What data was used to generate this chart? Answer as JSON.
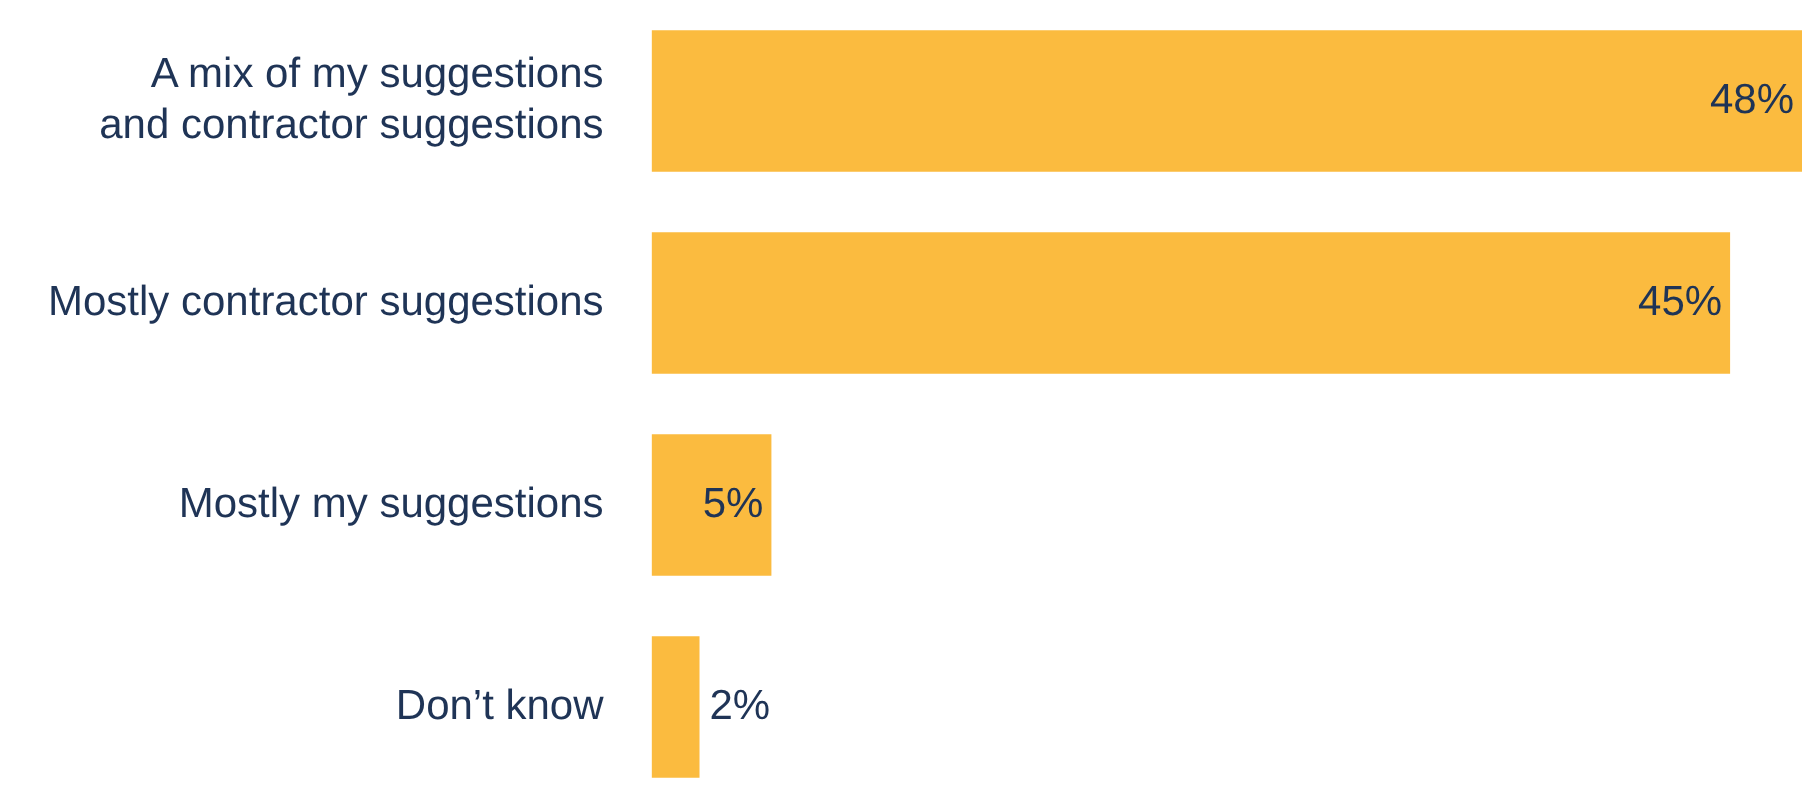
{
  "chart_data": {
    "type": "bar",
    "orientation": "horizontal",
    "categories": [
      "A mix of my suggestions and contractor suggestions",
      "Mostly contractor suggestions",
      "Mostly my suggestions",
      "Don’t know"
    ],
    "values": [
      48,
      45,
      5,
      2
    ],
    "value_labels": [
      "48%",
      "45%",
      "5%",
      "2%"
    ],
    "color": "#fbbb3f",
    "xlim": [
      0,
      48
    ],
    "tick_labels": "y",
    "legend": false
  }
}
